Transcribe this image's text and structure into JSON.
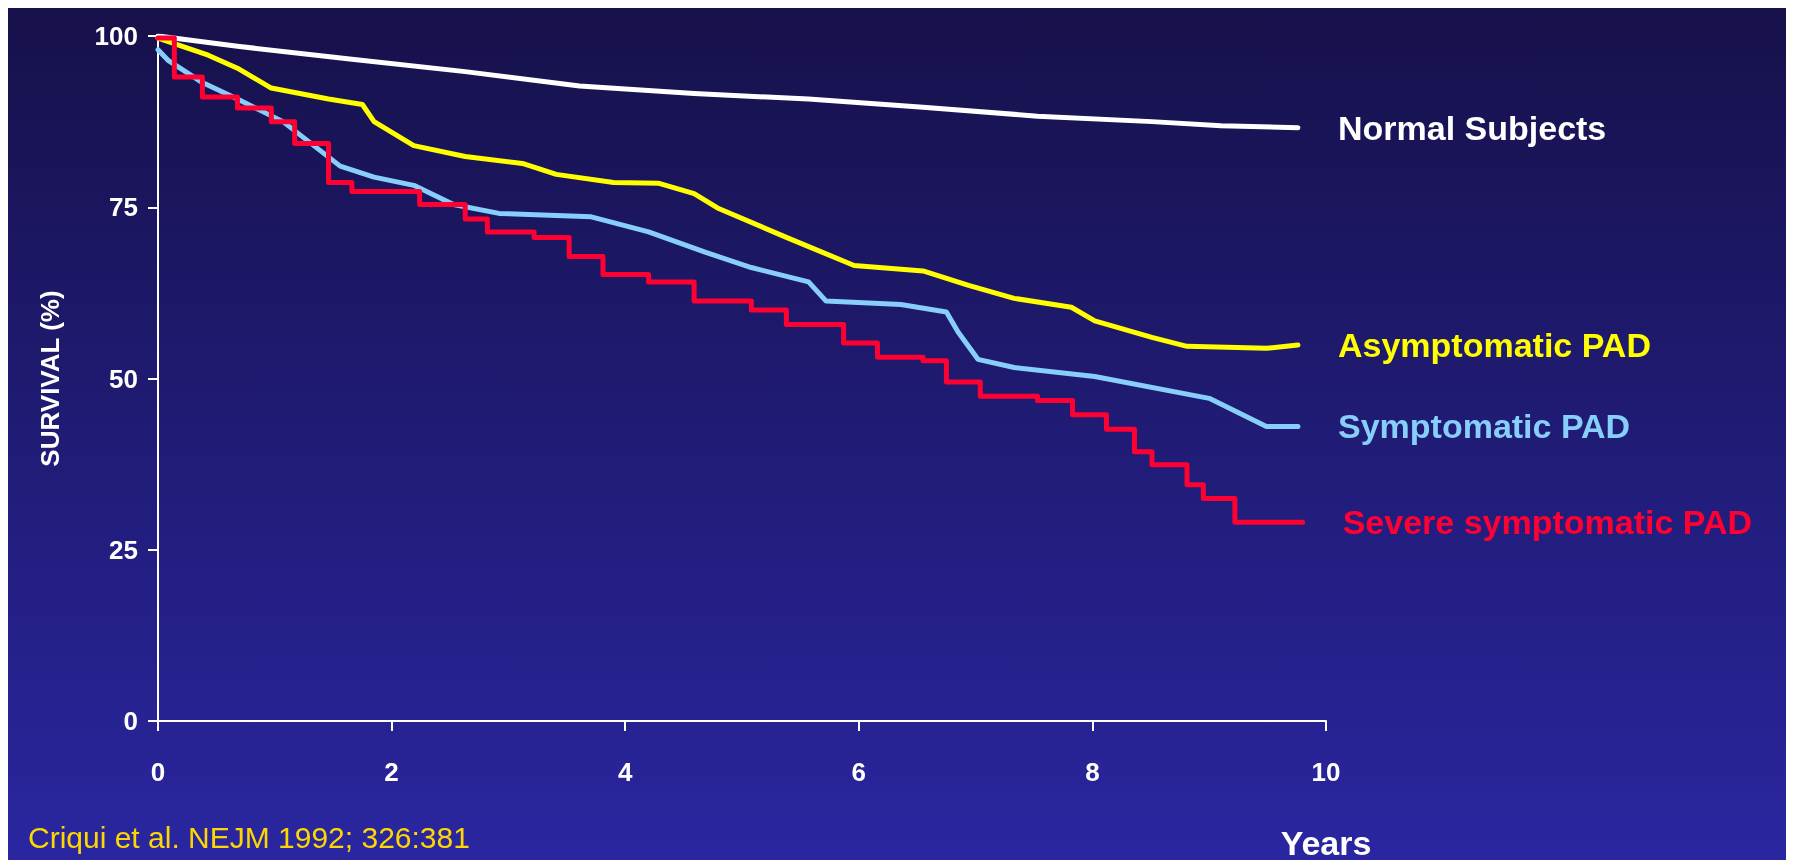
{
  "chart_data": {
    "type": "line",
    "xlabel": "Years",
    "ylabel": "SURVIVAL (%)",
    "xlim": [
      0,
      10
    ],
    "xticks": [
      0,
      2,
      4,
      6,
      8,
      10
    ],
    "ylim": [
      0,
      100
    ],
    "yticks": [
      0,
      25,
      50,
      75,
      100
    ],
    "grid": false,
    "legend": false,
    "marker": "none",
    "annotations": [
      "Criqui et al. NEJM 1992; 326:381"
    ],
    "series": [
      {
        "name": "Normal Subjects",
        "color": "#ffffff",
        "x": [
          0,
          0.68,
          1.66,
          2.63,
          3.61,
          4.59,
          5.57,
          6.55,
          7.53,
          8.51,
          9.1,
          9.76
        ],
        "values": [
          100,
          98.5,
          96.6,
          94.8,
          92.7,
          91.6,
          90.8,
          89.6,
          88.3,
          87.5,
          86.9,
          86.6
        ]
      },
      {
        "name": "Asymptomatic PAD",
        "color": "#ffff00",
        "x": [
          0,
          0.43,
          0.68,
          0.97,
          1.46,
          1.75,
          1.85,
          2.19,
          2.63,
          3.12,
          3.41,
          3.9,
          4.29,
          4.59,
          4.79,
          5.38,
          5.96,
          6.55,
          6.94,
          7.33,
          7.82,
          8.02,
          8.51,
          8.81,
          9.49,
          9.76
        ],
        "values": [
          99.7,
          97.2,
          95.3,
          92.4,
          90.8,
          90,
          87.5,
          84,
          82.4,
          81.4,
          79.8,
          78.6,
          78.5,
          77,
          74.9,
          70.6,
          66.5,
          65.7,
          63.6,
          61.7,
          60.4,
          58.4,
          56,
          54.7,
          54.4,
          54.9
        ]
      },
      {
        "name": "Symptomatic PAD",
        "color": "#87cefa",
        "x": [
          0,
          0.09,
          0.38,
          0.68,
          1.07,
          1.56,
          1.85,
          2.19,
          2.53,
          2.92,
          3.71,
          4.2,
          4.69,
          5.08,
          5.57,
          5.72,
          6.36,
          6.75,
          6.85,
          7.02,
          7.33,
          8.02,
          9.0,
          9.49,
          9.76
        ],
        "values": [
          98,
          96.4,
          93.2,
          90.8,
          87.5,
          81,
          79.4,
          78.2,
          75.4,
          74.1,
          73.6,
          71.4,
          68.4,
          66.2,
          64.1,
          61.3,
          60.8,
          59.7,
          56.8,
          52.8,
          51.6,
          50.3,
          47.1,
          43,
          43
        ]
      },
      {
        "name": "Severe symptomatic PAD",
        "color": "#ff0033",
        "type": "step",
        "x": [
          0,
          0.14,
          0.38,
          0.68,
          0.97,
          1.17,
          1.46,
          1.66,
          1.95,
          2.24,
          2.63,
          2.82,
          3.22,
          3.52,
          3.81,
          4.2,
          4.59,
          5.08,
          5.38,
          5.87,
          6.16,
          6.55,
          6.75,
          7.04,
          7.53,
          7.83,
          8.12,
          8.36,
          8.51,
          8.81,
          8.95,
          9.22,
          9.8
        ],
        "values": [
          99.7,
          94,
          91.1,
          89.5,
          87.5,
          84.3,
          78.6,
          77.3,
          77.3,
          75.4,
          73.3,
          71.4,
          70.6,
          67.8,
          65.2,
          64.1,
          61.3,
          60,
          57.9,
          55.2,
          53.1,
          52.6,
          49.5,
          47.4,
          46.8,
          44.7,
          42.6,
          39.3,
          37.4,
          34.5,
          32.5,
          29,
          29
        ]
      }
    ]
  }
}
